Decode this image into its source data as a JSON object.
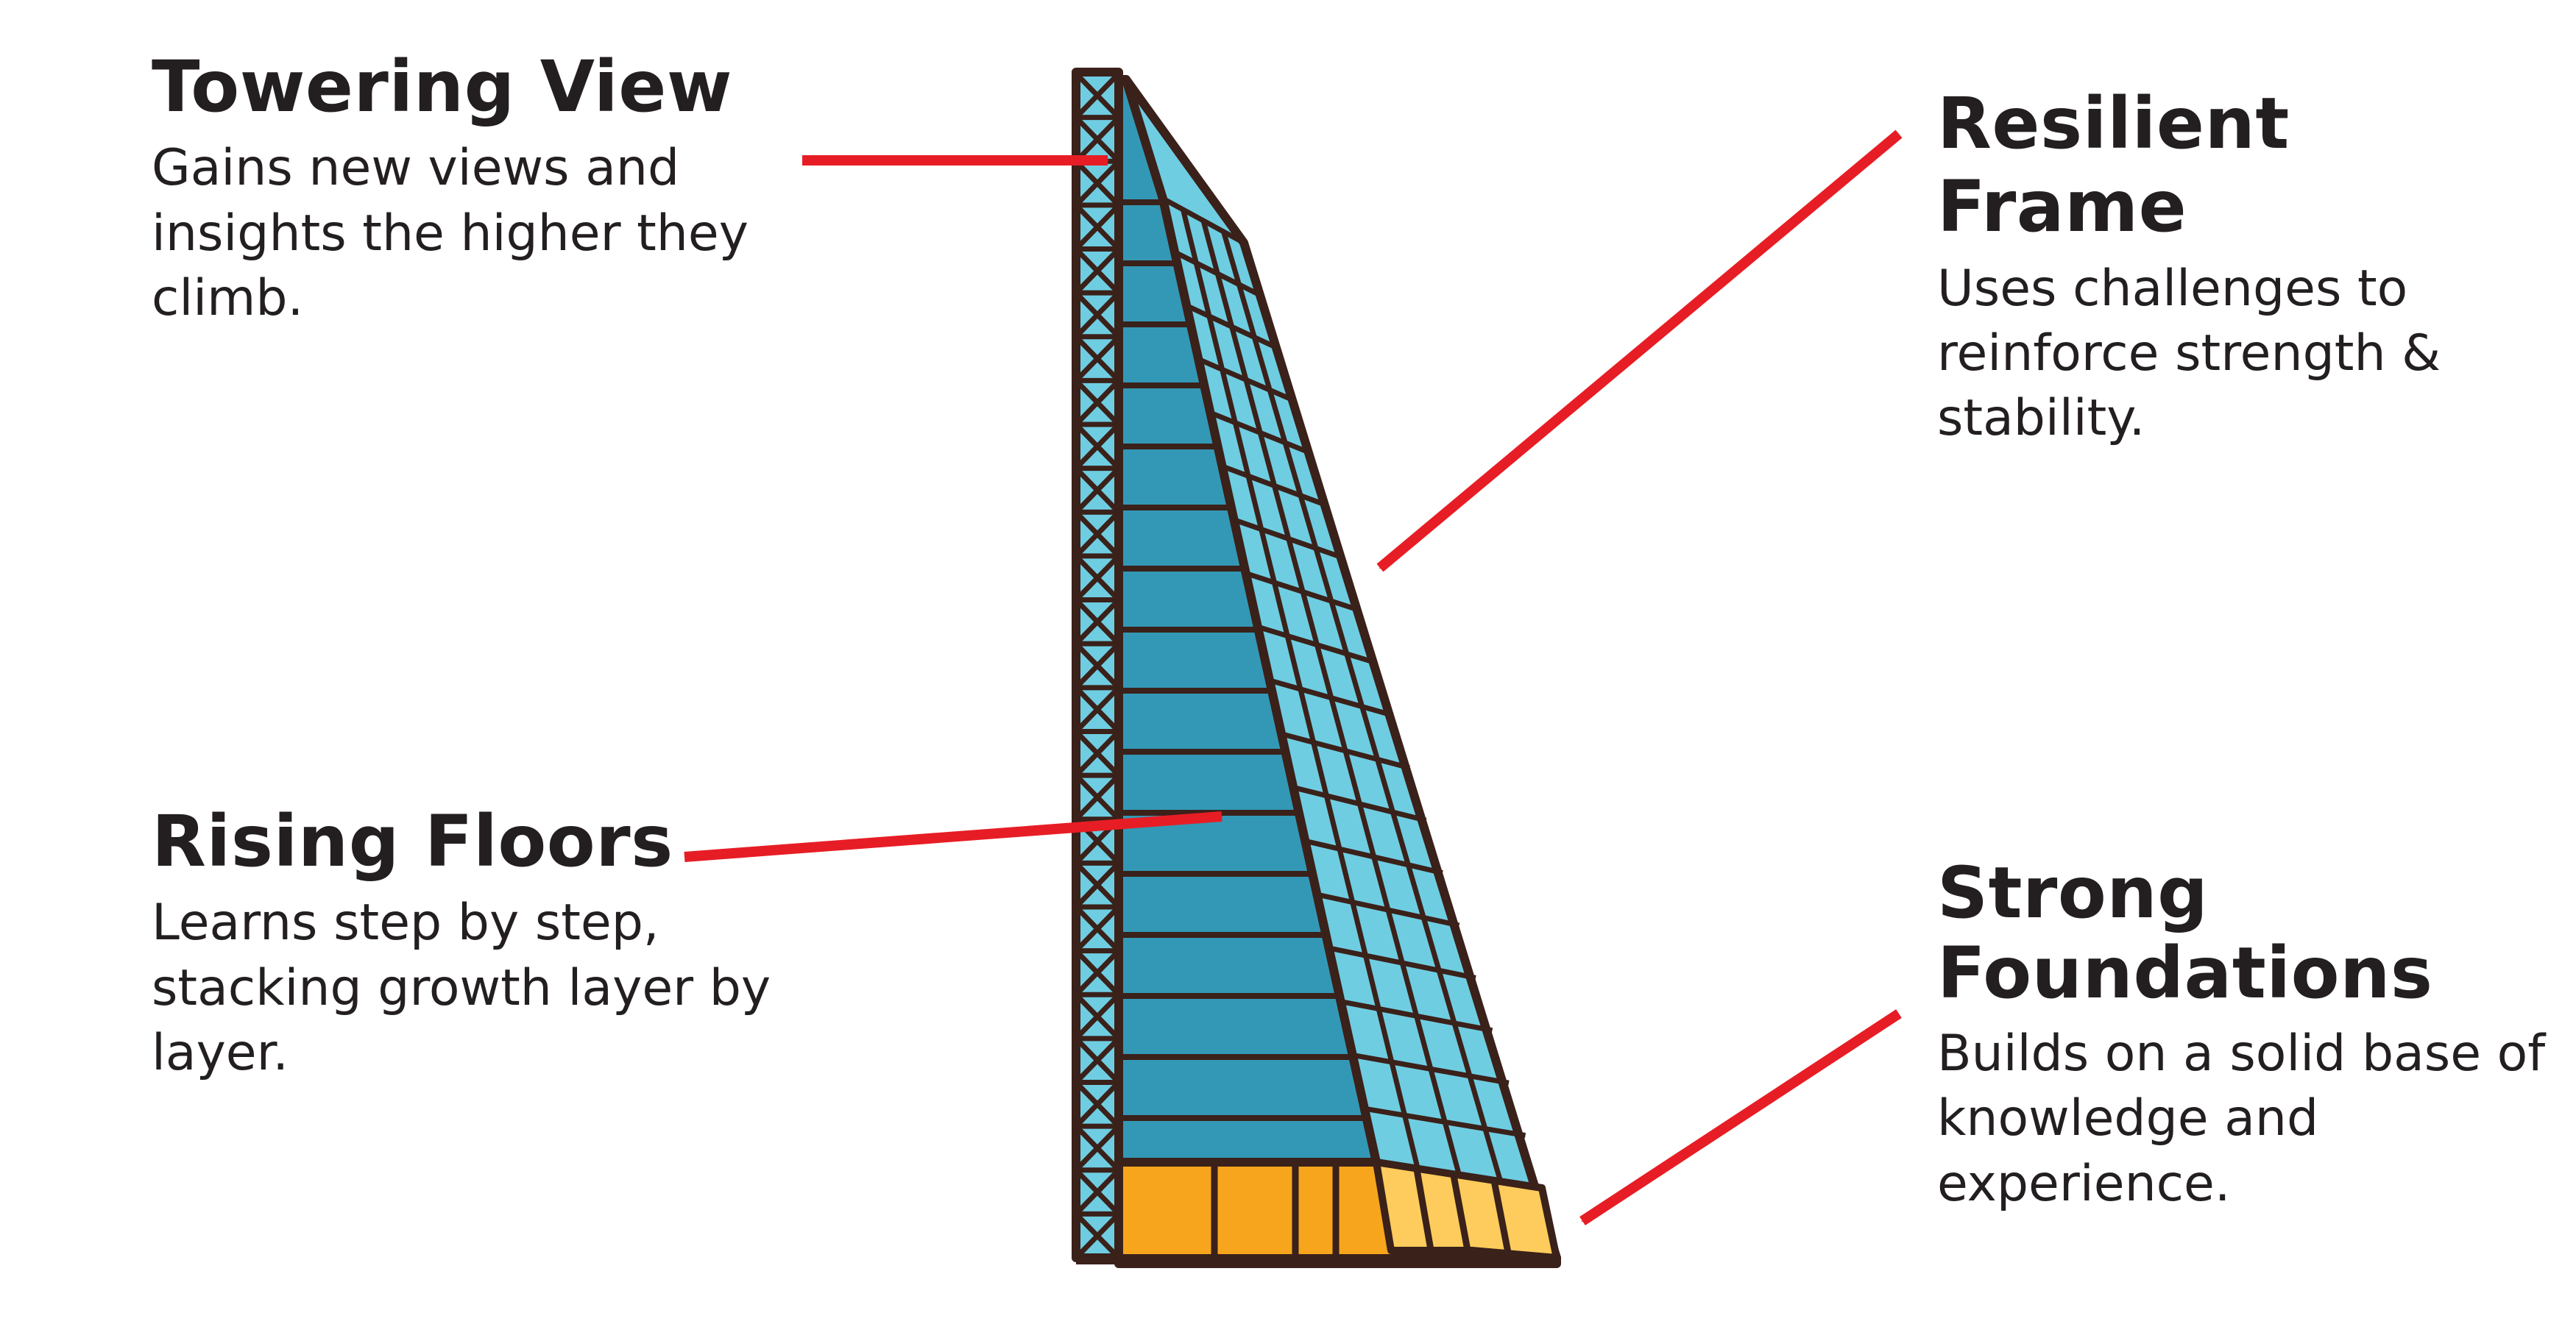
{
  "callouts": {
    "towering_view": {
      "title": "Towering View",
      "text": "Gains new views and insights the higher they climb."
    },
    "rising_floors": {
      "title": "Rising Floors",
      "text": "Learns step by step, stacking growth layer by layer."
    },
    "resilient_frame": {
      "title": "Resilient Frame",
      "text": "Uses challenges to reinforce strength & stability."
    },
    "strong_foundations": {
      "title": "Strong Foundations",
      "text": "Builds on a solid base of knowledge and experience."
    }
  },
  "colors": {
    "text": "#231f20",
    "arrow": "#e71d25",
    "outline": "#3a211a",
    "glass_dark": "#3398b5",
    "glass_light": "#6fcde1",
    "foundation_dark": "#f7a51c",
    "foundation_light": "#fecc5c"
  },
  "icons": [
    "skyscraper-icon"
  ]
}
